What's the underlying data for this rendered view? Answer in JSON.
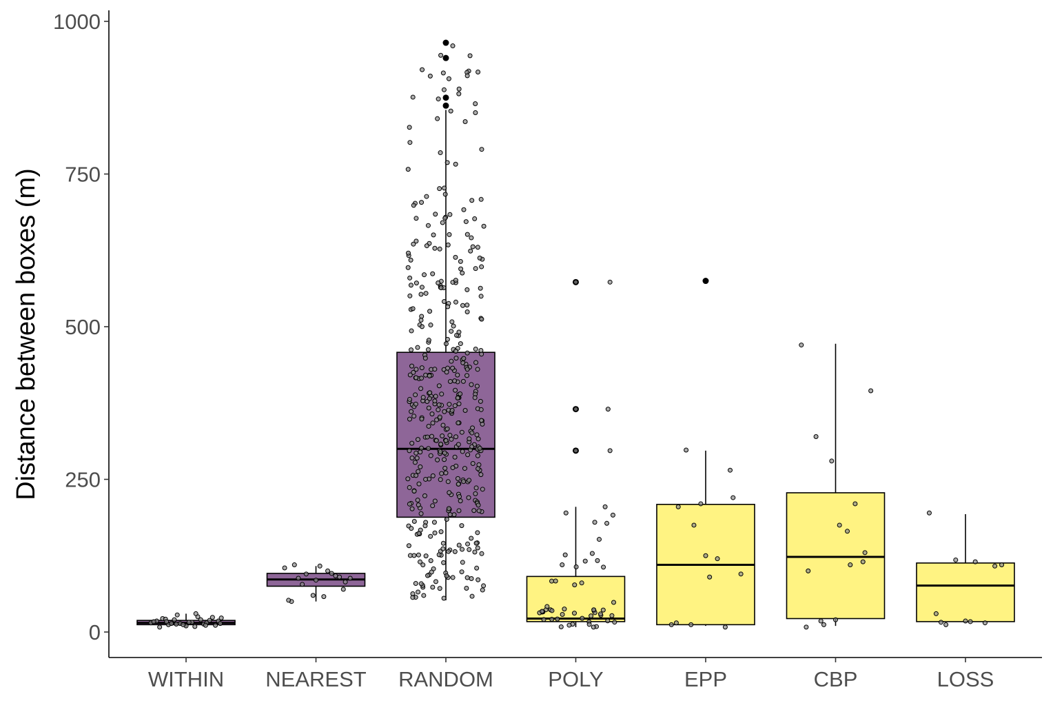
{
  "chart_data": {
    "type": "boxplot",
    "title": "",
    "xlabel": "",
    "ylabel": "Distance between boxes (m)",
    "ylim": [
      -40,
      1020
    ],
    "yticks": [
      0,
      250,
      500,
      750,
      1000
    ],
    "grid": false,
    "legend": "none",
    "categories": [
      "WITHIN",
      "NEAREST",
      "RANDOM",
      "POLY",
      "EPP",
      "CBP",
      "LOSS"
    ],
    "fill_colors": [
      "#8e6698",
      "#8e6698",
      "#8e6698",
      "#fff382",
      "#fff382",
      "#fff382",
      "#fff382"
    ],
    "boxes": [
      {
        "category": "WITHIN",
        "min": 8,
        "q1": 12,
        "median": 15,
        "q3": 19,
        "max": 30
      },
      {
        "category": "NEAREST",
        "min": 50,
        "q1": 75,
        "median": 86,
        "q3": 96,
        "max": 108
      },
      {
        "category": "RANDOM",
        "min": 52,
        "q1": 188,
        "median": 300,
        "q3": 458,
        "max": 855
      },
      {
        "category": "POLY",
        "min": 8,
        "q1": 17,
        "median": 22,
        "q3": 91,
        "max": 205
      },
      {
        "category": "EPP",
        "min": 10,
        "q1": 12,
        "median": 110,
        "q3": 209,
        "max": 297
      },
      {
        "category": "CBP",
        "min": 10,
        "q1": 22,
        "median": 123,
        "q3": 228,
        "max": 472
      },
      {
        "category": "LOSS",
        "min": 15,
        "q1": 17,
        "median": 76,
        "q3": 113,
        "max": 193
      }
    ],
    "outliers": [
      {
        "category": "RANDOM",
        "values": [
          862,
          875,
          940,
          965
        ]
      },
      {
        "category": "POLY",
        "values": [
          297,
          365,
          573
        ]
      },
      {
        "category": "EPP",
        "values": [
          575
        ]
      }
    ],
    "points": [
      {
        "category": "WITHIN",
        "offsets": [
          -0.36,
          -0.3,
          -0.24,
          -0.18,
          -0.12,
          -0.06,
          0,
          0.06,
          0.12,
          0.18,
          0.24,
          0.3,
          0.36,
          -0.33,
          -0.27,
          -0.21,
          -0.15,
          -0.09,
          -0.03,
          0.03,
          0.09,
          0.15,
          0.21,
          0.27,
          0.33,
          -0.1,
          0.1,
          0.2,
          -0.2,
          0.35
        ],
        "values": [
          15,
          18,
          22,
          12,
          20,
          14,
          10,
          16,
          25,
          13,
          19,
          11,
          23,
          17,
          8,
          21,
          14,
          28,
          12,
          16,
          9,
          20,
          15,
          24,
          18,
          13,
          30,
          11,
          17,
          14
        ]
      },
      {
        "category": "NEAREST",
        "offsets": [
          -0.32,
          -0.25,
          -0.18,
          -0.1,
          -0.03,
          0.04,
          0.12,
          0.2,
          0.28,
          0.35,
          -0.28,
          -0.14,
          0.0,
          0.16,
          0.3,
          -0.22,
          0.08,
          0.24
        ],
        "values": [
          105,
          50,
          88,
          95,
          60,
          108,
          100,
          92,
          70,
          88,
          52,
          78,
          85,
          96,
          82,
          110,
          58,
          90
        ]
      },
      {
        "category": "EPP",
        "offsets": [
          -0.35,
          -0.28,
          -0.2,
          -0.12,
          -0.05,
          0.04,
          0.12,
          0.2,
          0.28,
          0.36,
          -0.3,
          0.0,
          0.25,
          -0.15
        ],
        "values": [
          12,
          205,
          298,
          175,
          210,
          90,
          120,
          8,
          220,
          95,
          15,
          125,
          265,
          12
        ]
      },
      {
        "category": "CBP",
        "offsets": [
          -0.35,
          -0.28,
          -0.2,
          -0.12,
          -0.04,
          0.04,
          0.12,
          0.2,
          0.28,
          0.36,
          -0.3,
          0.0,
          0.15,
          -0.15,
          0.3
        ],
        "values": [
          470,
          100,
          320,
          12,
          280,
          175,
          165,
          210,
          115,
          395,
          8,
          20,
          110,
          18,
          130
        ]
      },
      {
        "category": "LOSS",
        "offsets": [
          -0.37,
          -0.3,
          -0.2,
          -0.1,
          0.0,
          0.1,
          0.2,
          0.3,
          0.37,
          -0.25,
          0.05
        ],
        "values": [
          195,
          30,
          12,
          118,
          18,
          115,
          15,
          108,
          110,
          16,
          17
        ]
      }
    ]
  }
}
